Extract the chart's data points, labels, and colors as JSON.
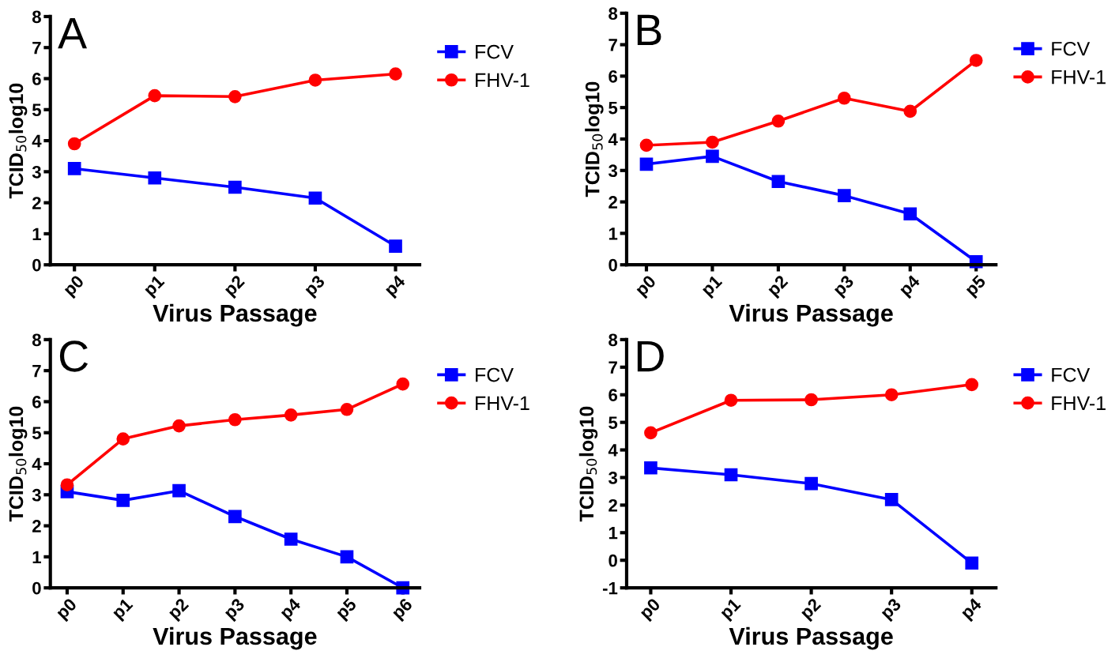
{
  "chart_data": [
    {
      "type": "line",
      "title": "A",
      "xlabel": "Virus Passage",
      "ylabel": "TCID$_{50}$log10",
      "categories": [
        "p0",
        "p1",
        "p2",
        "p3",
        "p4"
      ],
      "ylim": [
        0,
        8
      ],
      "yticks": [
        0,
        1,
        2,
        3,
        4,
        5,
        6,
        7,
        8
      ],
      "legend": "right",
      "grid": false,
      "series": [
        {
          "name": "FCV",
          "color": "#0000ff",
          "marker": "square",
          "values": [
            3.1,
            2.8,
            2.5,
            2.15,
            0.6
          ]
        },
        {
          "name": "FHV-1",
          "color": "#ff0000",
          "marker": "circle",
          "values": [
            3.9,
            5.45,
            5.42,
            5.95,
            6.15
          ]
        }
      ]
    },
    {
      "type": "line",
      "title": "B",
      "xlabel": "Virus Passage",
      "ylabel": "TCID$_{50}$log10",
      "categories": [
        "p0",
        "p1",
        "p2",
        "p3",
        "p4",
        "p5"
      ],
      "ylim": [
        0,
        8
      ],
      "yticks": [
        0,
        1,
        2,
        3,
        4,
        5,
        6,
        7,
        8
      ],
      "legend": "right",
      "grid": false,
      "series": [
        {
          "name": "FCV",
          "color": "#0000ff",
          "marker": "square",
          "values": [
            3.2,
            3.45,
            2.65,
            2.2,
            1.62,
            0.1
          ]
        },
        {
          "name": "FHV-1",
          "color": "#ff0000",
          "marker": "circle",
          "values": [
            3.8,
            3.9,
            4.57,
            5.3,
            4.88,
            6.5
          ]
        }
      ]
    },
    {
      "type": "line",
      "title": "C",
      "xlabel": "Virus Passage",
      "ylabel": "TCID$_{50}$log10",
      "categories": [
        "p0",
        "p1",
        "p2",
        "p3",
        "p4",
        "p5",
        "p6"
      ],
      "ylim": [
        0,
        8
      ],
      "yticks": [
        0,
        1,
        2,
        3,
        4,
        5,
        6,
        7,
        8
      ],
      "legend": "right",
      "grid": false,
      "series": [
        {
          "name": "FCV",
          "color": "#0000ff",
          "marker": "square",
          "values": [
            3.1,
            2.82,
            3.13,
            2.3,
            1.57,
            1.0,
            0.0
          ]
        },
        {
          "name": "FHV-1",
          "color": "#ff0000",
          "marker": "circle",
          "values": [
            3.32,
            4.8,
            5.22,
            5.42,
            5.57,
            5.75,
            6.57
          ]
        }
      ]
    },
    {
      "type": "line",
      "title": "D",
      "xlabel": "Virus Passage",
      "ylabel": "TCID$_{50}$log10",
      "categories": [
        "p0",
        "p1",
        "p2",
        "p3",
        "p4"
      ],
      "ylim": [
        -1,
        8
      ],
      "yticks": [
        -1,
        0,
        1,
        2,
        3,
        4,
        5,
        6,
        7,
        8
      ],
      "legend": "right",
      "grid": false,
      "series": [
        {
          "name": "FCV",
          "color": "#0000ff",
          "marker": "square",
          "values": [
            3.35,
            3.1,
            2.78,
            2.2,
            -0.1
          ]
        },
        {
          "name": "FHV-1",
          "color": "#ff0000",
          "marker": "circle",
          "values": [
            4.62,
            5.8,
            5.82,
            6.0,
            6.37
          ]
        }
      ]
    }
  ]
}
